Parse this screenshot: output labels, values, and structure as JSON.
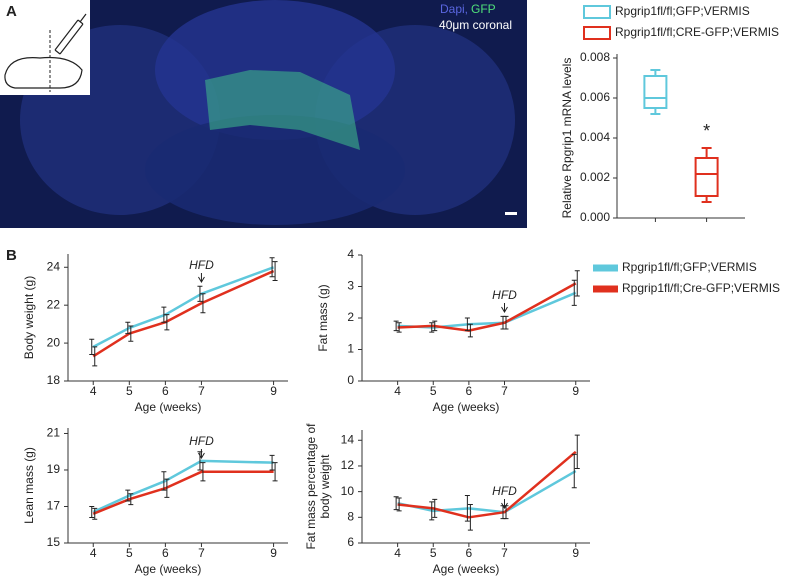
{
  "figure": {
    "panel_labels": [
      "A",
      "B"
    ],
    "micrograph": {
      "stains": [
        "Dapi,",
        "GFP"
      ],
      "section": "40μm coronal"
    }
  },
  "chart_data": [
    {
      "type": "box",
      "ylabel": "Relative Rpgrip1 mRNA levels",
      "ylim": [
        0,
        0.008
      ],
      "yticks": [
        {
          "value": 0,
          "label": "0.000"
        },
        {
          "value": 0.002,
          "label": "0.002"
        },
        {
          "value": 0.004,
          "label": "0.004"
        },
        {
          "value": 0.006,
          "label": "0.006"
        },
        {
          "value": 0.008,
          "label": "0.008"
        }
      ],
      "annotation": "*",
      "series": [
        {
          "name": "Rpgrip1fl/fl;GFP;VERMIS",
          "color": "#5fc8dc",
          "low": 0.0052,
          "q1": 0.0055,
          "median": 0.006,
          "q3": 0.0071,
          "high": 0.0074
        },
        {
          "name": "Rpgrip1fl/fl;CRE-GFP;VERMIS",
          "color": "#e0301e",
          "low": 0.0008,
          "q1": 0.0011,
          "median": 0.0022,
          "q3": 0.003,
          "high": 0.0035
        }
      ]
    },
    {
      "type": "line",
      "ylabel": "Body weight (g)",
      "xlabel": "Age (weeks)",
      "annotation": "HFD",
      "x": [
        4,
        5,
        6,
        7,
        9
      ],
      "xlim": [
        3.3,
        9.4
      ],
      "xticks": [
        4,
        5,
        6,
        7,
        9
      ],
      "ylim": [
        18,
        24.7
      ],
      "yticks": [
        18,
        20,
        22,
        24
      ],
      "series": [
        {
          "name": "Rpgrip1fl/fl;GFP;VERMIS",
          "color": "#5fc8dc",
          "values": [
            19.8,
            20.8,
            21.5,
            22.6,
            24.0
          ],
          "errors": [
            0.4,
            0.3,
            0.4,
            0.4,
            0.5
          ]
        },
        {
          "name": "Rpgrip1fl/fl;Cre-GFP;VERMIS",
          "color": "#e0301e",
          "values": [
            19.3,
            20.5,
            21.1,
            22.1,
            23.8
          ],
          "errors": [
            0.5,
            0.4,
            0.4,
            0.5,
            0.5
          ]
        }
      ]
    },
    {
      "type": "line",
      "ylabel": "Fat mass (g)",
      "xlabel": "Age (weeks)",
      "annotation": "HFD",
      "x": [
        4,
        5,
        6,
        7,
        9
      ],
      "xlim": [
        3,
        9.4
      ],
      "xticks": [
        4,
        5,
        6,
        7,
        9
      ],
      "ylim": [
        0,
        4
      ],
      "yticks": [
        0,
        1,
        2,
        3,
        4
      ],
      "series": [
        {
          "color": "#5fc8dc",
          "values": [
            1.75,
            1.7,
            1.8,
            1.85,
            2.8
          ],
          "errors": [
            0.15,
            0.15,
            0.2,
            0.2,
            0.4
          ]
        },
        {
          "color": "#e0301e",
          "values": [
            1.7,
            1.75,
            1.6,
            1.85,
            3.1
          ],
          "errors": [
            0.15,
            0.15,
            0.2,
            0.2,
            0.4
          ]
        }
      ]
    },
    {
      "type": "line",
      "ylabel": "Lean mass (g)",
      "xlabel": "Age (weeks)",
      "annotation": "HFD",
      "x": [
        4,
        5,
        6,
        7,
        9
      ],
      "xlim": [
        3.3,
        9.4
      ],
      "xticks": [
        4,
        5,
        6,
        7,
        9
      ],
      "ylim": [
        15,
        21.3
      ],
      "yticks": [
        15,
        17,
        19,
        21
      ],
      "series": [
        {
          "color": "#5fc8dc",
          "values": [
            16.7,
            17.6,
            18.4,
            19.5,
            19.4
          ],
          "errors": [
            0.3,
            0.3,
            0.5,
            0.5,
            0.4
          ]
        },
        {
          "color": "#e0301e",
          "values": [
            16.6,
            17.4,
            18.0,
            18.9,
            18.9
          ],
          "errors": [
            0.3,
            0.3,
            0.5,
            0.5,
            0.5
          ]
        }
      ]
    },
    {
      "type": "line",
      "ylabel": [
        "Fat mass percentage of",
        "body weight"
      ],
      "xlabel": "Age (weeks)",
      "annotation": "HFD",
      "x": [
        4,
        5,
        6,
        7,
        9
      ],
      "xlim": [
        3,
        9.4
      ],
      "xticks": [
        4,
        5,
        6,
        7,
        9
      ],
      "ylim": [
        6,
        14.8
      ],
      "yticks": [
        6,
        8,
        10,
        12,
        14
      ],
      "series": [
        {
          "color": "#5fc8dc",
          "values": [
            9.1,
            8.5,
            8.7,
            8.4,
            11.6
          ],
          "errors": [
            0.5,
            0.7,
            1.0,
            0.5,
            1.3
          ]
        },
        {
          "color": "#e0301e",
          "values": [
            9.0,
            8.7,
            8.0,
            8.4,
            13.1
          ],
          "errors": [
            0.5,
            0.7,
            1.0,
            0.5,
            1.3
          ]
        }
      ]
    }
  ]
}
